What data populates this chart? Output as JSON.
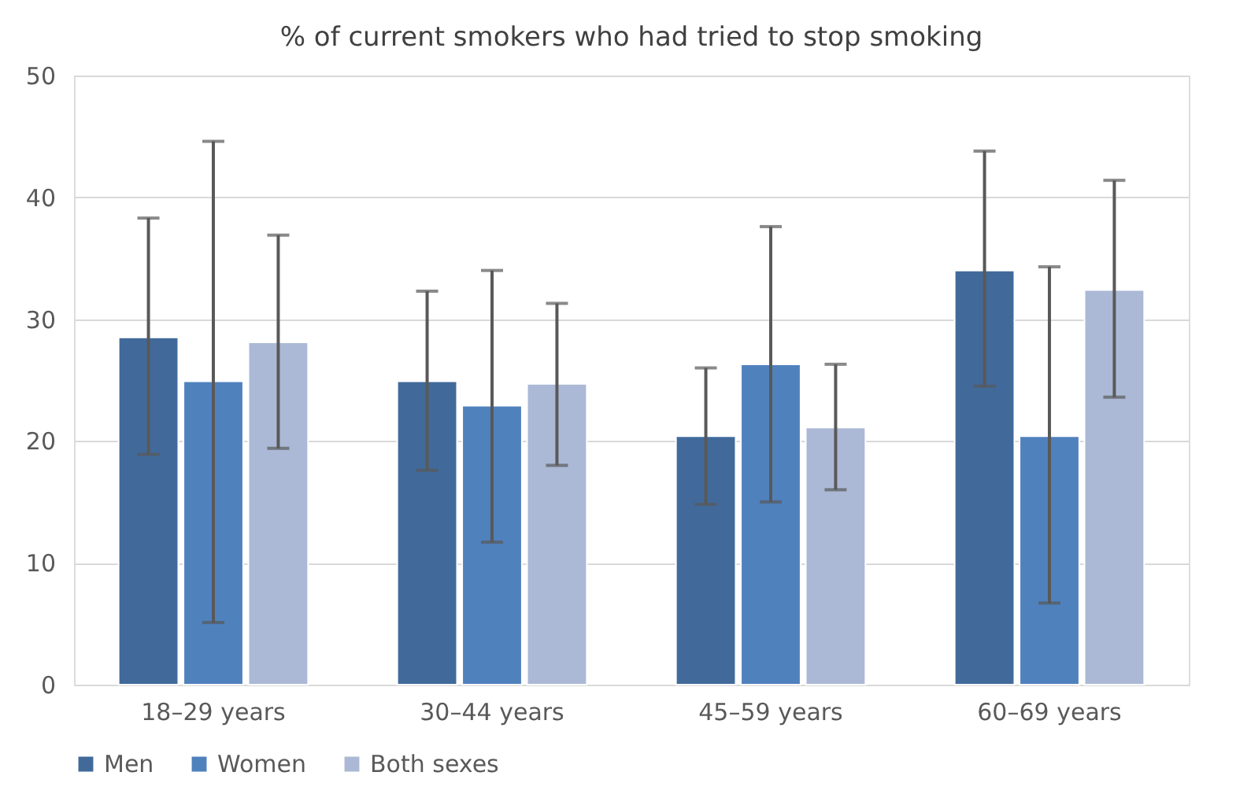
{
  "chart_data": {
    "type": "bar",
    "title": "% of current smokers who had tried to stop smoking",
    "categories": [
      "18–29 years",
      "30–44 years",
      "45–59 years",
      "60–69 years"
    ],
    "series": [
      {
        "name": "Men",
        "color": "#416a9b",
        "values": [
          28.5,
          24.9,
          20.4,
          34.0
        ],
        "errors": [
          [
            18.9,
            38.3
          ],
          [
            17.6,
            32.3
          ],
          [
            14.8,
            26.0
          ],
          [
            24.5,
            43.8
          ]
        ]
      },
      {
        "name": "Women",
        "color": "#4f81bd",
        "values": [
          24.9,
          22.9,
          26.3,
          20.4
        ],
        "errors": [
          [
            5.1,
            44.6
          ],
          [
            11.7,
            34.0
          ],
          [
            15.0,
            37.6
          ],
          [
            6.7,
            34.3
          ]
        ]
      },
      {
        "name": "Both sexes",
        "color": "#abb9d6",
        "values": [
          28.1,
          24.7,
          21.1,
          32.4
        ],
        "errors": [
          [
            19.4,
            36.9
          ],
          [
            18.0,
            31.3
          ],
          [
            16.0,
            26.3
          ],
          [
            23.6,
            41.4
          ]
        ]
      }
    ],
    "ylim": [
      0,
      50
    ],
    "yticks": [
      0,
      10,
      20,
      30,
      40,
      50
    ],
    "grid": "y",
    "legend": "bottom"
  }
}
